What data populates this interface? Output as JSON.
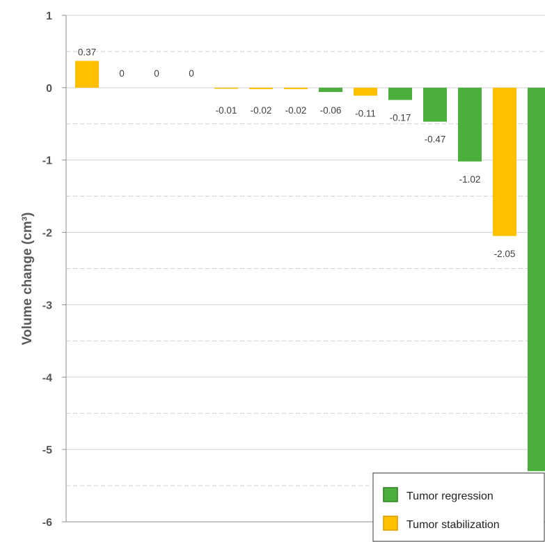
{
  "chart_data": {
    "type": "bar",
    "ylabel": "Volume change (cm³)",
    "ylim": [
      -6,
      1
    ],
    "yticks": [
      "1",
      "0",
      "-1",
      "-2",
      "-3",
      "-4",
      "-5",
      "-6"
    ],
    "grid": true,
    "legend_position": "bottom-right",
    "colors": {
      "regression": "#4CAF3D",
      "stabilization": "#FFC000",
      "regression_border": "#2E7D22",
      "stabilization_border": "#D99A00"
    },
    "legend": [
      {
        "key": "regression",
        "label": "Tumor regression"
      },
      {
        "key": "stabilization",
        "label": "Tumor stabilization"
      }
    ],
    "bars": [
      {
        "value": 0.37,
        "label": "0.37",
        "group": "stabilization"
      },
      {
        "value": 0,
        "label": "0",
        "group": "stabilization"
      },
      {
        "value": 0,
        "label": "0",
        "group": "stabilization"
      },
      {
        "value": 0,
        "label": "0",
        "group": "stabilization"
      },
      {
        "value": -0.01,
        "label": "-0.01",
        "group": "stabilization"
      },
      {
        "value": -0.02,
        "label": "-0.02",
        "group": "stabilization"
      },
      {
        "value": -0.02,
        "label": "-0.02",
        "group": "stabilization"
      },
      {
        "value": -0.06,
        "label": "-0.06",
        "group": "regression"
      },
      {
        "value": -0.11,
        "label": "-0.11",
        "group": "stabilization"
      },
      {
        "value": -0.17,
        "label": "-0.17",
        "group": "regression"
      },
      {
        "value": -0.47,
        "label": "-0.47",
        "group": "regression"
      },
      {
        "value": -1.02,
        "label": "-1.02",
        "group": "regression"
      },
      {
        "value": -2.05,
        "label": "-2.05",
        "group": "stabilization"
      },
      {
        "value": -5.3,
        "label": "",
        "group": "regression"
      }
    ]
  }
}
